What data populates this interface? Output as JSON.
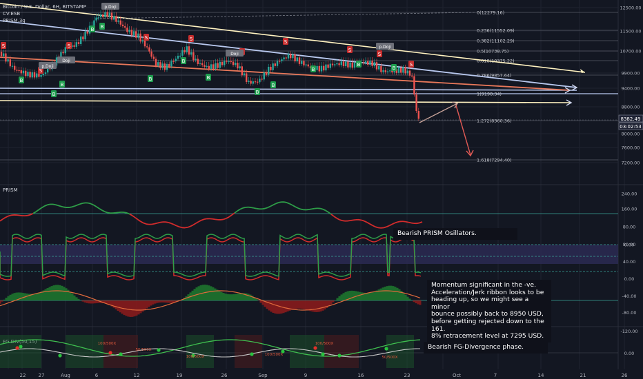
{
  "header": {
    "symbol": "Bitcoin / U.S. Dollar, 6H, BITSTAMP",
    "indicator1": "CV:ESB",
    "indicator2": "PRISM.3g"
  },
  "colors": {
    "background": "#131722",
    "grid": "#1f2330",
    "axis_text": "#b2b5be",
    "up": "#26a69a",
    "down": "#ef5350",
    "green_label": "#1f9e4f",
    "red_label": "#c62d2d",
    "yellow_line": "#fff2c0",
    "blue_line": "#b8c8ee",
    "orange_line": "#e9785a",
    "ribbon_band": "#2c2a52"
  },
  "chart_data": [
    {
      "type": "candlestick",
      "title": "Bitcoin / U.S. Dollar, 6H, BITSTAMP",
      "x_tick_labels": [
        "22",
        "27",
        "Aug",
        "6",
        "12",
        "19",
        "26",
        "Sep",
        "9",
        "16",
        "23",
        "Oct",
        "7",
        "14",
        "21",
        "26"
      ],
      "y_ticks": [
        12500,
        11500,
        10700,
        9900,
        9400,
        8800,
        8000,
        7600,
        7200
      ],
      "y_tick_labels": [
        "12500.00",
        "11500.00",
        "10700.00",
        "9900.00",
        "9400.00",
        "8800.00",
        "8000.00",
        "7600.00",
        "7200.00"
      ],
      "ylim": [
        7000,
        12700
      ],
      "fib_levels": [
        {
          "label": "0(12279.16)",
          "price": 12279.16
        },
        {
          "label": "0.236(11552.09)",
          "price": 11552.09
        },
        {
          "label": "0.382(11102.29)",
          "price": 11102.29
        },
        {
          "label": "0.5(10738.75)",
          "price": 10738.75
        },
        {
          "label": "0.618(10375.22)",
          "price": 10375.22
        },
        {
          "label": "0.786(9857.64)",
          "price": 9857.64
        },
        {
          "label": "1(9198.34)",
          "price": 9198.34
        },
        {
          "label": "1.272(8360.36)",
          "price": 8360.36
        },
        {
          "label": "1.618(7294.40)",
          "price": 7294.4
        }
      ],
      "last_price": "8382.49",
      "countdown": "03:02:53",
      "signal_labels": [
        {
          "text": "S",
          "kind": "sell"
        },
        {
          "text": "B",
          "kind": "buy"
        },
        {
          "text": "p.Doji",
          "kind": "neutral"
        },
        {
          "text": "Doji",
          "kind": "neutral"
        }
      ]
    },
    {
      "type": "line",
      "title": "PRISM",
      "y_ticks": [
        240,
        160,
        80,
        0
      ],
      "y_tick_labels": [
        "240.00",
        "160.00",
        "80.00",
        "0.00"
      ]
    },
    {
      "type": "area",
      "y_ticks": [
        80,
        40,
        0,
        -40,
        -80
      ],
      "y_tick_labels": [
        "80.00",
        "40.00",
        "0.00",
        "-40.00",
        "-80.00"
      ]
    },
    {
      "type": "line",
      "title": "FG.DIV(50,15)",
      "y_ticks": [
        -120,
        0
      ],
      "y_tick_labels": [
        "-120.00",
        "0.00"
      ],
      "markers": [
        "100/500X",
        "50/500X",
        "100/500X",
        "100/500X",
        "100/500X",
        "50/500X"
      ]
    }
  ],
  "notes": {
    "prism": "Bearish PRISM Osillators.",
    "momentum": "Momentum significant in the -ve.\nAcceleration/Jerk ribbon looks to be\nheading up, so we might see a minor\nbounce possibly back to 8950 USD,\nbefore getting rejected down to the 161.\n8% retracement level at 7295 USD.",
    "fg": "Bearish FG-Divergence phase."
  }
}
